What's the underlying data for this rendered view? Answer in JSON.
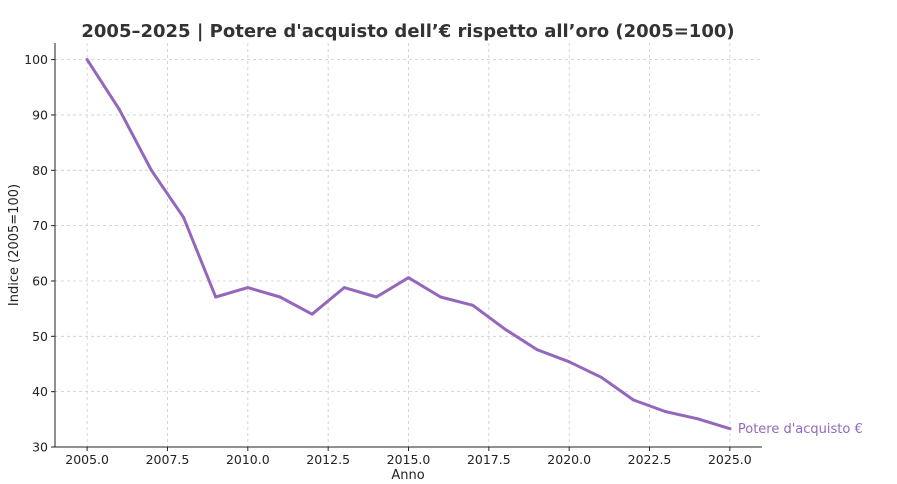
{
  "chart_data": {
    "type": "line",
    "title": "2005–2025 | Potere d'acquisto dell’€ rispetto all’oro (2005=100)",
    "xlabel": "Anno",
    "ylabel": "Indice (2005=100)",
    "xlim": [
      2004.0,
      2026.0
    ],
    "ylim": [
      30,
      103
    ],
    "xticks": [
      "2005.0",
      "2007.5",
      "2010.0",
      "2012.5",
      "2015.0",
      "2017.5",
      "2020.0",
      "2022.5",
      "2025.0"
    ],
    "yticks": [
      "30",
      "40",
      "50",
      "60",
      "70",
      "80",
      "90",
      "100"
    ],
    "grid": true,
    "series": [
      {
        "name": "Potere d'acquisto €",
        "color": "#9467bd",
        "x": [
          2005,
          2006,
          2007,
          2008,
          2009,
          2010,
          2011,
          2012,
          2013,
          2014,
          2015,
          2016,
          2017,
          2018,
          2019,
          2020,
          2021,
          2022,
          2023,
          2024,
          2025
        ],
        "y": [
          100.0,
          91.0,
          80.0,
          71.5,
          57.1,
          58.8,
          57.1,
          54.0,
          58.8,
          57.1,
          60.6,
          57.1,
          55.6,
          51.3,
          47.6,
          45.4,
          42.6,
          38.5,
          36.4,
          35.1,
          33.3
        ]
      }
    ]
  }
}
